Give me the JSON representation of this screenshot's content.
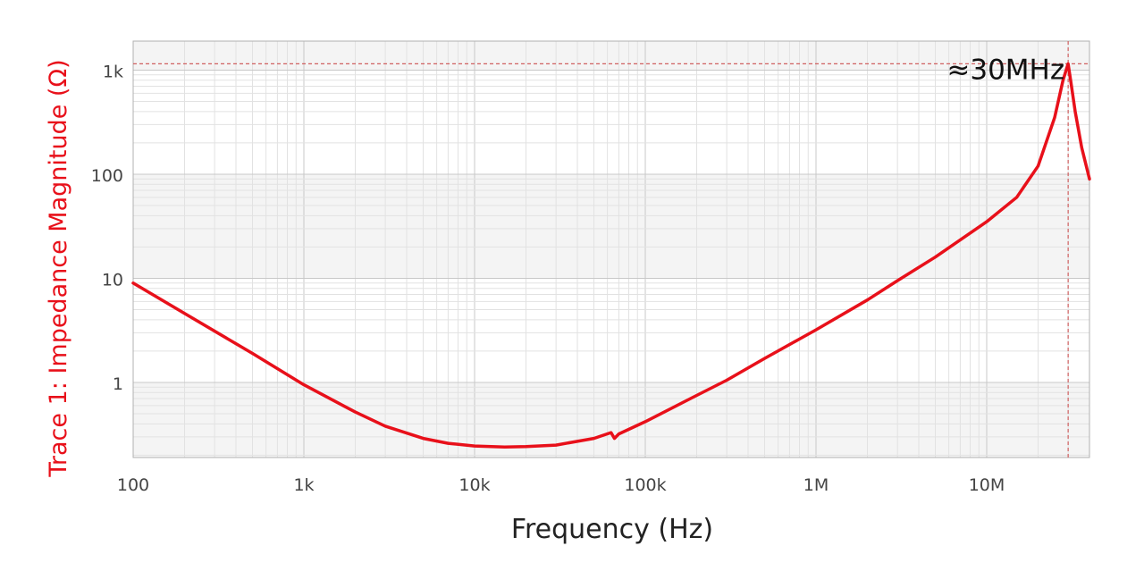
{
  "chart_data": {
    "type": "line",
    "xlabel": "Frequency (Hz)",
    "ylabel": "Trace 1: Impedance Magnitude (Ω)",
    "x_scale": "log",
    "y_scale": "log",
    "xlim": [
      100,
      40000000
    ],
    "ylim": [
      0.19,
      1900
    ],
    "x_ticks": [
      {
        "value": 100,
        "label": "100"
      },
      {
        "value": 1000,
        "label": "1k"
      },
      {
        "value": 10000,
        "label": "10k"
      },
      {
        "value": 100000,
        "label": "100k"
      },
      {
        "value": 1000000,
        "label": "1M"
      },
      {
        "value": 10000000,
        "label": "10M"
      }
    ],
    "y_ticks": [
      {
        "value": 1,
        "label": "1"
      },
      {
        "value": 10,
        "label": "10"
      },
      {
        "value": 100,
        "label": "100"
      },
      {
        "value": 1000,
        "label": "1k"
      }
    ],
    "grid": true,
    "series": [
      {
        "color": "#e8101a",
        "points": [
          [
            100,
            9.0
          ],
          [
            200,
            4.6
          ],
          [
            500,
            1.9
          ],
          [
            1000,
            0.95
          ],
          [
            2000,
            0.52
          ],
          [
            3000,
            0.38
          ],
          [
            5000,
            0.29
          ],
          [
            7000,
            0.26
          ],
          [
            10000,
            0.245
          ],
          [
            15000,
            0.24
          ],
          [
            20000,
            0.242
          ],
          [
            30000,
            0.25
          ],
          [
            50000,
            0.29
          ],
          [
            63000,
            0.33
          ],
          [
            66000,
            0.29
          ],
          [
            70000,
            0.32
          ],
          [
            100000,
            0.42
          ],
          [
            200000,
            0.75
          ],
          [
            300000,
            1.05
          ],
          [
            500000,
            1.7
          ],
          [
            1000000,
            3.2
          ],
          [
            2000000,
            6.2
          ],
          [
            3000000,
            9.5
          ],
          [
            5000000,
            16
          ],
          [
            10000000,
            35
          ],
          [
            15000000,
            60
          ],
          [
            20000000,
            120
          ],
          [
            25000000,
            350
          ],
          [
            28000000,
            800
          ],
          [
            30000000,
            1150
          ],
          [
            31000000,
            800
          ],
          [
            33000000,
            400
          ],
          [
            36000000,
            180
          ],
          [
            40000000,
            90
          ]
        ]
      }
    ],
    "reference_lines": {
      "horizontal_value": 1150,
      "vertical_value": 30000000,
      "color": "#d06060"
    },
    "annotations": [
      {
        "text": "≈30MHz",
        "x": 30000000,
        "y": 1150
      }
    ]
  },
  "colors": {
    "series": "#e8101a",
    "ylabel": "#e8101a",
    "grid_major": "#c8c8c8",
    "grid_minor": "#e2e2e2",
    "band": "#f4f4f4"
  }
}
